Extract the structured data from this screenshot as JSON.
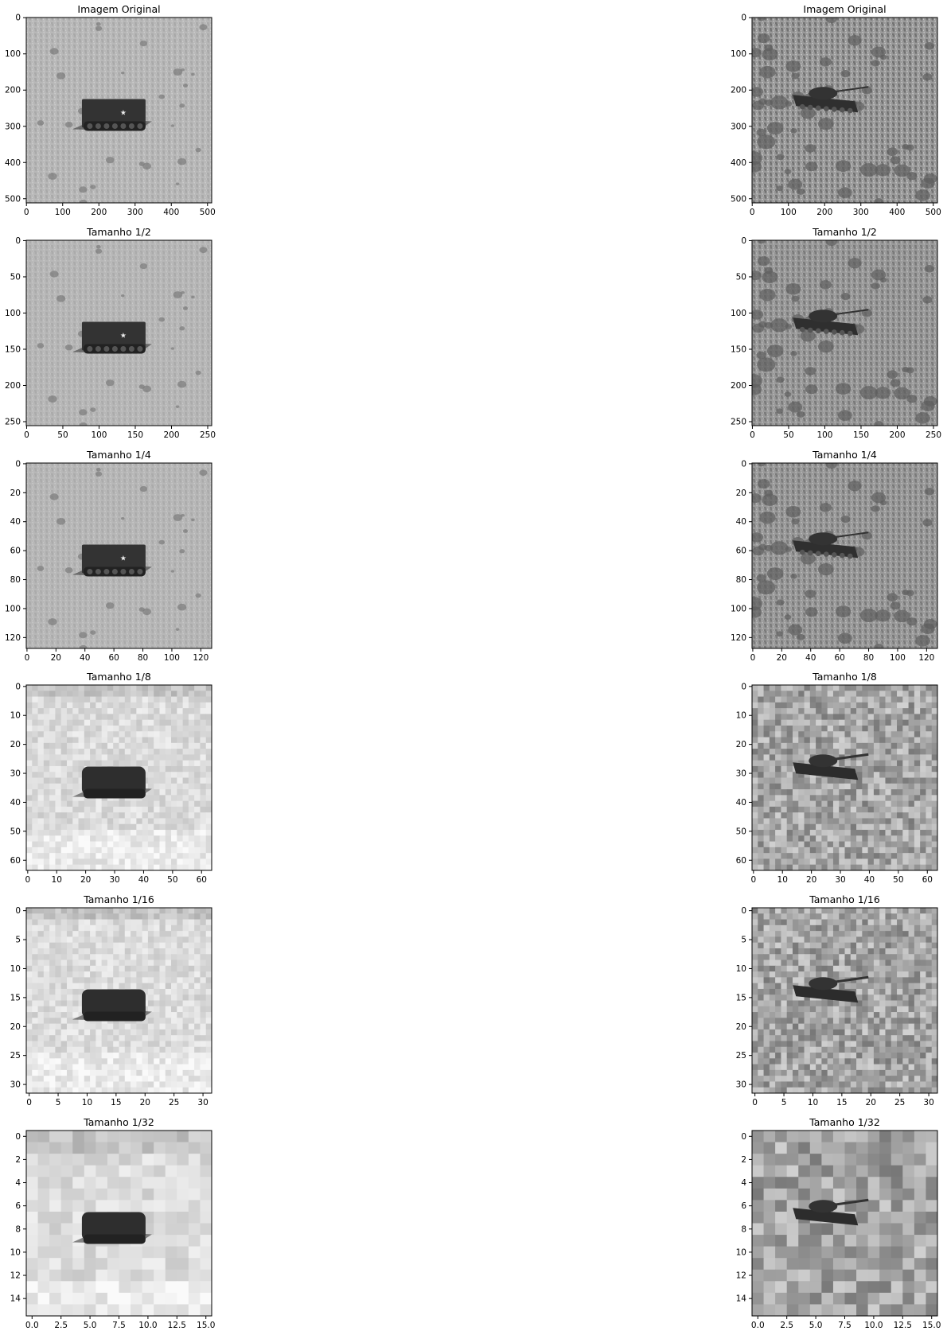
{
  "figure": {
    "columns": [
      {
        "name": "left",
        "panels": [
          {
            "title": "Imagem Original",
            "size": 512,
            "xticks": [
              "0",
              "100",
              "200",
              "300",
              "400",
              "500"
            ],
            "yticks": [
              "0",
              "100",
              "200",
              "300",
              "400",
              "500"
            ]
          },
          {
            "title": "Tamanho 1/2",
            "size": 256,
            "xticks": [
              "0",
              "50",
              "100",
              "150",
              "200",
              "250"
            ],
            "yticks": [
              "0",
              "50",
              "100",
              "150",
              "200",
              "250"
            ]
          },
          {
            "title": "Tamanho 1/4",
            "size": 128,
            "xticks": [
              "0",
              "20",
              "40",
              "60",
              "80",
              "100",
              "120"
            ],
            "yticks": [
              "0",
              "20",
              "40",
              "60",
              "80",
              "100",
              "120"
            ]
          },
          {
            "title": "Tamanho 1/8",
            "size": 64,
            "xticks": [
              "0",
              "10",
              "20",
              "30",
              "40",
              "50",
              "60"
            ],
            "yticks": [
              "0",
              "10",
              "20",
              "30",
              "40",
              "50",
              "60"
            ]
          },
          {
            "title": "Tamanho 1/16",
            "size": 32,
            "xticks": [
              "0",
              "5",
              "10",
              "15",
              "20",
              "25",
              "30"
            ],
            "yticks": [
              "0",
              "5",
              "10",
              "15",
              "20",
              "25",
              "30"
            ]
          },
          {
            "title": "Tamanho 1/32",
            "size": 16,
            "xticks": [
              "0.0",
              "2.5",
              "5.0",
              "7.5",
              "10.0",
              "12.5",
              "15.0"
            ],
            "yticks": [
              "0",
              "2",
              "4",
              "6",
              "8",
              "10",
              "12",
              "14"
            ]
          }
        ]
      },
      {
        "name": "right",
        "panels": [
          {
            "title": "Imagem Original",
            "size": 512,
            "xticks": [
              "0",
              "100",
              "200",
              "300",
              "400",
              "500"
            ],
            "yticks": [
              "0",
              "100",
              "200",
              "300",
              "400",
              "500"
            ]
          },
          {
            "title": "Tamanho 1/2",
            "size": 256,
            "xticks": [
              "0",
              "50",
              "100",
              "150",
              "200",
              "250"
            ],
            "yticks": [
              "0",
              "50",
              "100",
              "150",
              "200",
              "250"
            ]
          },
          {
            "title": "Tamanho 1/4",
            "size": 128,
            "xticks": [
              "0",
              "20",
              "40",
              "60",
              "80",
              "100",
              "120"
            ],
            "yticks": [
              "0",
              "20",
              "40",
              "60",
              "80",
              "100",
              "120"
            ]
          },
          {
            "title": "Tamanho 1/8",
            "size": 64,
            "xticks": [
              "0",
              "10",
              "20",
              "30",
              "40",
              "50",
              "60"
            ],
            "yticks": [
              "0",
              "10",
              "20",
              "30",
              "40",
              "50",
              "60"
            ]
          },
          {
            "title": "Tamanho 1/16",
            "size": 32,
            "xticks": [
              "0",
              "5",
              "10",
              "15",
              "20",
              "25",
              "30"
            ],
            "yticks": [
              "0",
              "5",
              "10",
              "15",
              "20",
              "25",
              "30"
            ]
          },
          {
            "title": "Tamanho 1/32",
            "size": 16,
            "xticks": [
              "0.0",
              "2.5",
              "5.0",
              "7.5",
              "10.0",
              "12.5",
              "15.0"
            ],
            "yticks": [
              "0",
              "2",
              "4",
              "6",
              "8",
              "10",
              "12",
              "14"
            ]
          }
        ]
      }
    ]
  }
}
